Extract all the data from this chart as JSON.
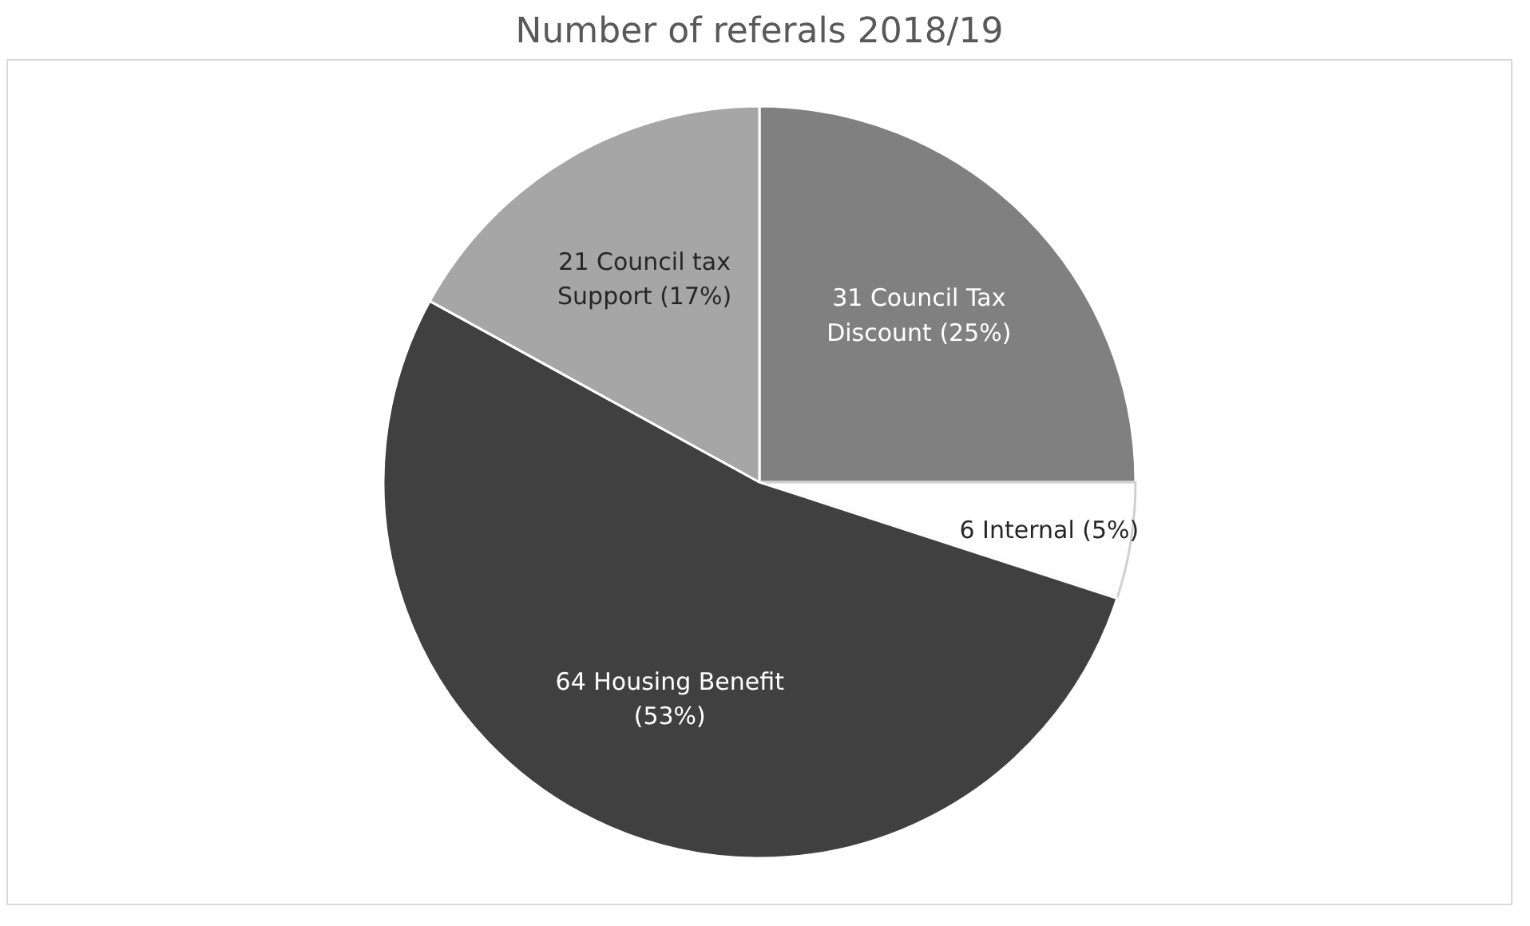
{
  "chart_data": {
    "type": "pie",
    "title": "Number of referals 2018/19",
    "categories": [
      "31 Council Tax Discount (25%)",
      "6 Internal (5%)",
      "64 Housing Benefit (53%)",
      "21 Council tax Support (17%)"
    ],
    "values": [
      25,
      5,
      53,
      17
    ],
    "colors": [
      "#808080",
      "#ffffff",
      "#404040",
      "#a6a6a6"
    ]
  }
}
